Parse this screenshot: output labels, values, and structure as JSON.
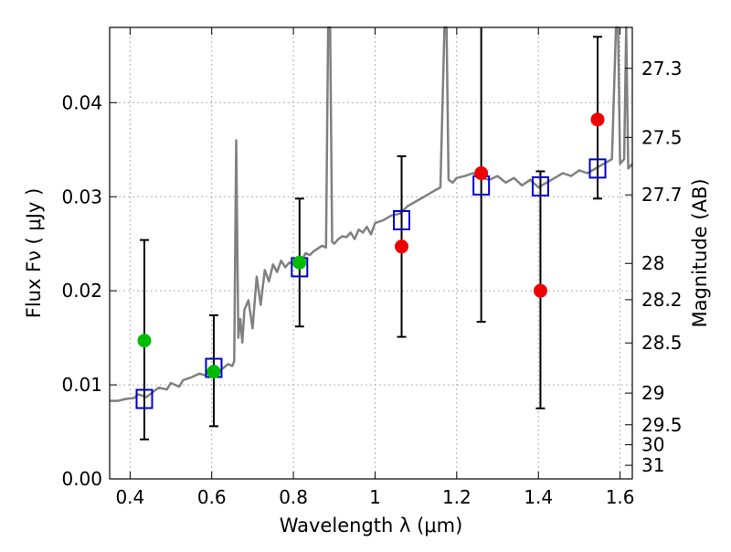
{
  "chart_data": {
    "type": "scatter",
    "xlabel": "Wavelength  λ (μm)",
    "ylabel": "Flux  Fν  ( μJy )",
    "y2label": "Magnitude (AB)",
    "xlim": [
      0.35,
      1.63
    ],
    "ylim": [
      0.0,
      0.048
    ],
    "grid": true,
    "x_ticks": [
      {
        "value": 0.4,
        "label": "0.4"
      },
      {
        "value": 0.6,
        "label": "0.6"
      },
      {
        "value": 0.8,
        "label": "0.8"
      },
      {
        "value": 1.0,
        "label": "1"
      },
      {
        "value": 1.2,
        "label": "1.2"
      },
      {
        "value": 1.4,
        "label": "1.4"
      },
      {
        "value": 1.6,
        "label": "1.6"
      }
    ],
    "y_ticks": [
      {
        "value": 0.0,
        "label": "0.00"
      },
      {
        "value": 0.01,
        "label": "0.01"
      },
      {
        "value": 0.02,
        "label": "0.02"
      },
      {
        "value": 0.03,
        "label": "0.03"
      },
      {
        "value": 0.04,
        "label": "0.04"
      }
    ],
    "y2_ticks": [
      {
        "value": 27.3,
        "label": "27.3"
      },
      {
        "value": 27.5,
        "label": "27.5"
      },
      {
        "value": 27.7,
        "label": "27.7"
      },
      {
        "value": 28,
        "label": "28"
      },
      {
        "value": 28.2,
        "label": "28.2"
      },
      {
        "value": 28.5,
        "label": "28.5"
      },
      {
        "value": 29,
        "label": "29"
      },
      {
        "value": 29.5,
        "label": "29.5"
      },
      {
        "value": 30,
        "label": "30"
      },
      {
        "value": 31,
        "label": "31"
      }
    ],
    "y2_mag_zero_point": 23.9,
    "colors": {
      "spectrum": "#808080",
      "model_marker": "#0000cc",
      "hst_points": "#00bb00",
      "nir_points": "#ee0000",
      "errorbar": "#000000",
      "grid": "#b0b0b0"
    },
    "spectrum": {
      "x": [
        0.35,
        0.37,
        0.39,
        0.41,
        0.42,
        0.44,
        0.455,
        0.47,
        0.49,
        0.5,
        0.52,
        0.53,
        0.55,
        0.57,
        0.585,
        0.6,
        0.62,
        0.64,
        0.65,
        0.655,
        0.66,
        0.665,
        0.67,
        0.675,
        0.68,
        0.69,
        0.7,
        0.71,
        0.72,
        0.73,
        0.74,
        0.75,
        0.76,
        0.77,
        0.78,
        0.79,
        0.8,
        0.81,
        0.82,
        0.83,
        0.84,
        0.85,
        0.86,
        0.87,
        0.88,
        0.885,
        0.89,
        0.895,
        0.9,
        0.91,
        0.92,
        0.93,
        0.94,
        0.95,
        0.96,
        0.97,
        0.98,
        0.99,
        1.0,
        1.02,
        1.04,
        1.06,
        1.08,
        1.1,
        1.12,
        1.14,
        1.16,
        1.17,
        1.175,
        1.18,
        1.19,
        1.2,
        1.22,
        1.24,
        1.26,
        1.28,
        1.3,
        1.32,
        1.34,
        1.36,
        1.38,
        1.4,
        1.42,
        1.44,
        1.46,
        1.48,
        1.5,
        1.52,
        1.54,
        1.56,
        1.58,
        1.59,
        1.595,
        1.6,
        1.61,
        1.615,
        1.62,
        1.63
      ],
      "y": [
        0.0083,
        0.0083,
        0.0085,
        0.0086,
        0.009,
        0.0087,
        0.0092,
        0.0097,
        0.0095,
        0.0102,
        0.0098,
        0.0105,
        0.0108,
        0.0112,
        0.011,
        0.0118,
        0.0115,
        0.0122,
        0.012,
        0.0125,
        0.036,
        0.015,
        0.017,
        0.0145,
        0.018,
        0.019,
        0.016,
        0.0215,
        0.0185,
        0.0222,
        0.021,
        0.0228,
        0.022,
        0.0232,
        0.0225,
        0.023,
        0.0228,
        0.0235,
        0.0232,
        0.024,
        0.0238,
        0.0242,
        0.0245,
        0.0248,
        0.0246,
        0.048,
        0.048,
        0.0252,
        0.025,
        0.0255,
        0.0258,
        0.0257,
        0.0262,
        0.0255,
        0.0265,
        0.0262,
        0.0268,
        0.026,
        0.0272,
        0.0275,
        0.028,
        0.0282,
        0.029,
        0.0295,
        0.03,
        0.0305,
        0.031,
        0.048,
        0.048,
        0.0318,
        0.0315,
        0.032,
        0.0322,
        0.0325,
        0.032,
        0.0318,
        0.0322,
        0.0315,
        0.032,
        0.0312,
        0.0318,
        0.031,
        0.0315,
        0.032,
        0.0325,
        0.0322,
        0.0328,
        0.0325,
        0.033,
        0.0335,
        0.034,
        0.048,
        0.048,
        0.0335,
        0.034,
        0.048,
        0.033,
        0.0335
      ]
    },
    "series": [
      {
        "x": [
          0.435,
          0.605,
          0.815
        ],
        "y": [
          0.0147,
          0.0114,
          0.023
        ],
        "err": [
          null,
          null,
          null
        ]
      },
      {
        "x": [
          1.065,
          1.26,
          1.405,
          1.545
        ],
        "y": [
          0.0247,
          0.0325,
          0.02,
          0.0382
        ],
        "err": [
          null,
          null,
          null,
          null
        ]
      }
    ],
    "model_points": {
      "x": [
        0.435,
        0.605,
        0.815,
        1.065,
        1.26,
        1.405,
        1.545
      ],
      "y": [
        0.0085,
        0.0118,
        0.0225,
        0.0275,
        0.0312,
        0.0311,
        0.033
      ]
    },
    "errorbars": {
      "x": [
        0.435,
        0.605,
        0.815,
        1.065,
        1.26,
        1.405,
        1.545
      ],
      "low": [
        0.0042,
        0.0056,
        0.0162,
        0.0151,
        0.0167,
        0.0075,
        0.0298
      ],
      "high": [
        0.0254,
        0.0174,
        0.0298,
        0.0343,
        0.049,
        0.0327,
        0.047
      ]
    }
  }
}
